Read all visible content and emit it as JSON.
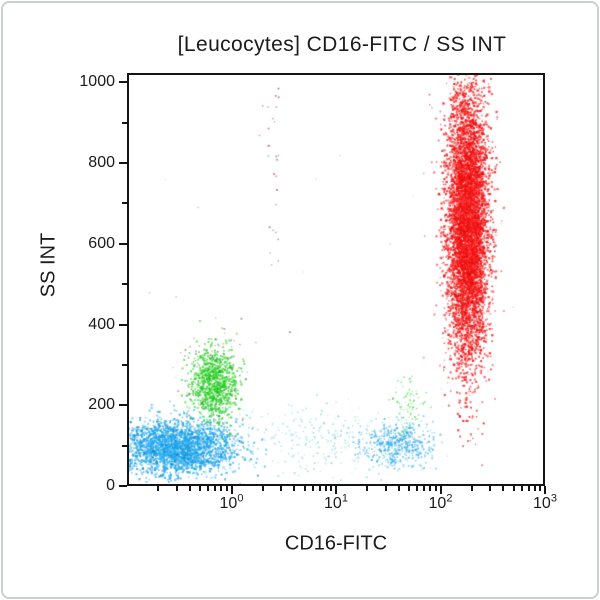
{
  "card": {
    "border_color": "#cbd0d0",
    "background": "#ffffff"
  },
  "chart_data": {
    "type": "scatter",
    "title": "[Leucocytes] CD16-FITC / SS INT",
    "xlabel": "CD16-FITC",
    "ylabel": "SS INT",
    "grid": false,
    "legend": "none",
    "axis_color": "#141414",
    "text_color": "#1b1b1b",
    "x_axis": {
      "scale": "log",
      "log10_range": [
        -1,
        3
      ],
      "tick_exponents": [
        0,
        1,
        2,
        3
      ],
      "minor_mantissas": [
        2,
        3,
        4,
        5,
        6,
        7,
        8,
        9
      ],
      "tick_base": "10"
    },
    "y_axis": {
      "range": [
        0,
        1023
      ],
      "major_ticks": [
        0,
        200,
        400,
        600,
        800,
        1000
      ],
      "minor_ticks": [
        100,
        300,
        500,
        700,
        900
      ]
    },
    "populations": [
      {
        "name": "low-ss-scatter-band",
        "dist": "gauss",
        "n": 240,
        "x_log10_mean": 0.85,
        "x_log10_sd": 0.45,
        "y_mean": 115,
        "y_sd": 45,
        "colors": [
          "#2FB3D8",
          "#35C18F",
          "#49C44C"
        ],
        "size": 1.5,
        "alpha": 0.45
      },
      {
        "name": "lymphocytes-blue",
        "dist": "gauss",
        "n": 2600,
        "x_log10_mean": -0.52,
        "x_log10_sd": 0.28,
        "y_mean": 95,
        "y_sd": 33,
        "colors": [
          "#18A1EB",
          "#55C5F3",
          "#0E7EC4"
        ],
        "size": 1.8,
        "alpha": 0.8
      },
      {
        "name": "monocyte-zone-specks",
        "dist": "gauss",
        "n": 60,
        "x_log10_mean": -0.16,
        "x_log10_sd": 0.17,
        "y_mean": 255,
        "y_sd": 75,
        "colors": [
          "#8E2247",
          "#B1452B",
          "#7D8F23"
        ],
        "size": 1.4,
        "alpha": 0.55
      },
      {
        "name": "monocytes-green",
        "dist": "gauss",
        "n": 950,
        "x_log10_mean": -0.16,
        "x_log10_sd": 0.11,
        "y_mean": 253,
        "y_sd": 46,
        "colors": [
          "#1FCC1F",
          "#5FE14A",
          "#0F9C13"
        ],
        "size": 1.7,
        "alpha": 0.85
      },
      {
        "name": "cd16dim-blue",
        "dist": "gauss",
        "n": 520,
        "x_log10_mean": 1.58,
        "x_log10_sd": 0.18,
        "y_mean": 102,
        "y_sd": 27,
        "colors": [
          "#18A1EB",
          "#4FC2F0",
          "#1187CC"
        ],
        "size": 1.6,
        "alpha": 0.65
      },
      {
        "name": "cd16dim-green",
        "dist": "gauss",
        "n": 85,
        "x_log10_mean": 1.7,
        "x_log10_sd": 0.075,
        "y_mean": 195,
        "y_sd": 33,
        "colors": [
          "#1FCC1F",
          "#62DE52",
          "#17A81C"
        ],
        "size": 1.5,
        "alpha": 0.65
      },
      {
        "name": "eosinophil-maroon-column",
        "dist": "gauss",
        "n": 42,
        "x_log10_mean": 0.4,
        "x_log10_sd": 0.05,
        "y_mean": 880,
        "y_sd": 200,
        "colors": [
          "#8E2247",
          "#A8375F",
          "#69182F"
        ],
        "size": 1.4,
        "alpha": 0.75
      },
      {
        "name": "neutrophils-red-edge",
        "dist": "gauss",
        "n": 260,
        "x_log10_mean": 2.26,
        "x_log10_sd": 0.16,
        "y_mean": 645,
        "y_sd": 215,
        "colors": [
          "#D41430",
          "#E03A3A",
          "#8E2247"
        ],
        "size": 1.5,
        "alpha": 0.7
      },
      {
        "name": "neutrophils-red-core",
        "dist": "gauss",
        "n": 6200,
        "x_log10_mean": 2.26,
        "x_log10_sd": 0.095,
        "y_mean": 650,
        "y_sd": 170,
        "colors": [
          "#F31010",
          "#FF3D3D",
          "#D50C0C"
        ],
        "size": 1.8,
        "alpha": 0.9
      },
      {
        "name": "red-zone-specks",
        "dist": "gauss",
        "n": 28,
        "x_log10_mean": 2.26,
        "x_log10_sd": 0.15,
        "y_mean": 620,
        "y_sd": 230,
        "colors": [
          "#2CB32C",
          "#9FAF2A",
          "#E0C22A"
        ],
        "size": 1.3,
        "alpha": 0.6
      },
      {
        "name": "background-specks",
        "dist": "uniform",
        "n": 26,
        "x_log10_range": [
          -0.9,
          2.9
        ],
        "y_range": [
          40,
          1000
        ],
        "colors": [
          "#6f6f6f",
          "#8a8a8a",
          "#574f5a"
        ],
        "size": 1.2,
        "alpha": 0.5
      }
    ]
  }
}
